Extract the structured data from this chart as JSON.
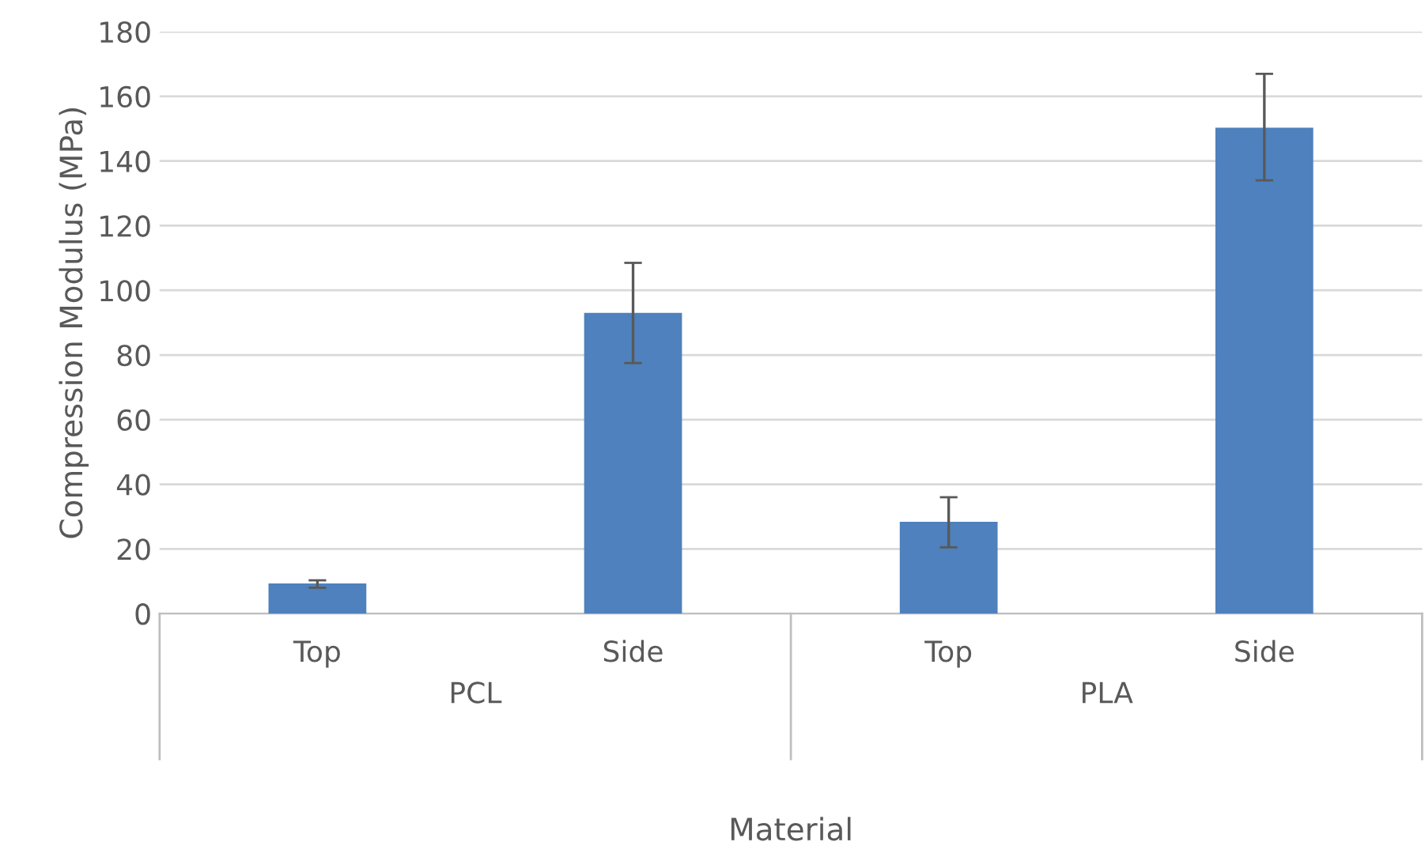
{
  "chart_data": {
    "type": "bar",
    "xlabel": "Material",
    "ylabel": "Compression Modulus (MPa)",
    "categories": [
      "Top",
      "Side",
      "Top",
      "Side"
    ],
    "series": [
      {
        "color": "#4e81bd",
        "values": [
          9.3,
          93,
          28.4,
          150.3
        ],
        "errors": [
          [
            8,
            10.3
          ],
          [
            77.5,
            108.5
          ],
          [
            20.5,
            36
          ],
          [
            134,
            167
          ]
        ]
      }
    ],
    "annotations": [
      "PCL",
      "PLA"
    ],
    "ylim": [
      0,
      180
    ],
    "yticks": [
      0,
      20,
      40,
      60,
      80,
      100,
      120,
      140,
      160,
      180
    ],
    "grid": "y",
    "legend": false
  }
}
